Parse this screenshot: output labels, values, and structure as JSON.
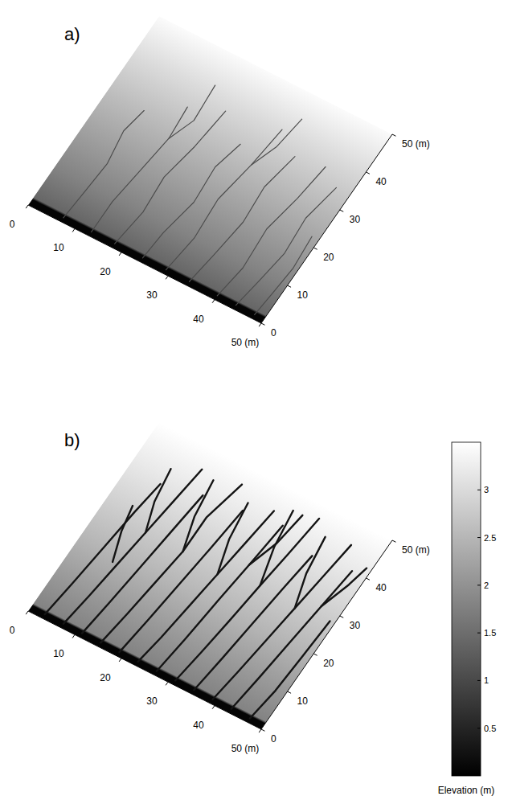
{
  "chart_data": [
    {
      "type": "surface",
      "title": "a)",
      "color": "#4d4d4d",
      "xlim": [
        0,
        50
      ],
      "ylim": [
        0,
        50
      ],
      "xticks": [
        0,
        10,
        20,
        30,
        40,
        {
          "value": 50,
          "label": "50 (m)"
        }
      ],
      "yticks": [
        0,
        10,
        20,
        30,
        40,
        {
          "value": 50,
          "label": "50 (m)"
        }
      ],
      "profile": {
        "y": [
          0,
          1.5,
          2,
          10,
          20,
          30,
          40,
          50
        ],
        "elevation": [
          0.05,
          0.05,
          1.4,
          1.8,
          2.2,
          2.6,
          3.0,
          3.45
        ]
      },
      "channels": [
        {
          "x": [
            7,
            7.5,
            8,
            7,
            8
          ],
          "y": [
            1,
            8,
            16,
            24,
            30
          ]
        },
        {
          "x": [
            13,
            13,
            14,
            15,
            14.5
          ],
          "y": [
            1,
            9,
            18,
            27,
            35
          ]
        },
        {
          "x": [
            18,
            19,
            18.5,
            20,
            21
          ],
          "y": [
            1,
            10,
            19,
            28,
            38
          ]
        },
        {
          "x": [
            24,
            24.5,
            26,
            25.5,
            27
          ],
          "y": [
            1,
            8,
            17,
            26,
            33
          ]
        },
        {
          "x": [
            29,
            30,
            29.5,
            31,
            32
          ],
          "y": [
            1,
            10,
            20,
            30,
            40
          ]
        },
        {
          "x": [
            34,
            35,
            36,
            35.5,
            37
          ],
          "y": [
            1,
            9,
            18,
            27,
            36
          ]
        },
        {
          "x": [
            40,
            41,
            40.5,
            42,
            43
          ],
          "y": [
            1,
            9,
            19,
            28,
            37
          ]
        },
        {
          "x": [
            44,
            45,
            46,
            45.5,
            47
          ],
          "y": [
            1,
            8,
            16,
            25,
            34
          ]
        },
        {
          "x": [
            48,
            48.5,
            49,
            48.5
          ],
          "y": [
            1,
            7,
            14,
            22
          ]
        },
        {
          "x": [
            15,
            17,
            16.5
          ],
          "y": [
            27,
            33,
            42
          ]
        },
        {
          "x": [
            31,
            33,
            34
          ],
          "y": [
            30,
            36,
            44
          ]
        }
      ]
    },
    {
      "type": "surface",
      "title": "b)",
      "color": "#141414",
      "xlim": [
        0,
        50
      ],
      "ylim": [
        0,
        50
      ],
      "xticks": [
        0,
        10,
        20,
        30,
        40,
        {
          "value": 50,
          "label": "50 (m)"
        }
      ],
      "yticks": [
        0,
        10,
        20,
        30,
        40,
        {
          "value": 50,
          "label": "50 (m)"
        }
      ],
      "profile": {
        "y": [
          0,
          1.5,
          2,
          10,
          20,
          30,
          40,
          50
        ],
        "elevation": [
          0.05,
          0.05,
          1.8,
          2.1,
          2.5,
          2.85,
          3.2,
          3.5
        ]
      },
      "channels": [
        {
          "x": [
            3,
            4,
            5,
            6,
            7
          ],
          "y": [
            1,
            10,
            20,
            30,
            38
          ]
        },
        {
          "x": [
            7,
            8,
            9,
            10,
            11,
            12
          ],
          "y": [
            1,
            9,
            18,
            27,
            36,
            45
          ]
        },
        {
          "x": [
            11,
            12,
            13,
            14,
            15
          ],
          "y": [
            1,
            10,
            20,
            30,
            40
          ]
        },
        {
          "x": [
            15,
            16,
            17,
            18,
            18,
            20
          ],
          "y": [
            1,
            9,
            18,
            27,
            36,
            46
          ]
        },
        {
          "x": [
            19,
            20,
            21,
            22,
            23
          ],
          "y": [
            1,
            10,
            20,
            30,
            41
          ]
        },
        {
          "x": [
            23,
            24,
            25,
            26,
            27,
            28
          ],
          "y": [
            1,
            8,
            17,
            26,
            35,
            44
          ]
        },
        {
          "x": [
            27,
            28,
            29,
            30,
            31
          ],
          "y": [
            1,
            10,
            21,
            31,
            42
          ]
        },
        {
          "x": [
            31,
            32,
            33,
            34,
            35,
            36
          ],
          "y": [
            1,
            9,
            18,
            28,
            37,
            47
          ]
        },
        {
          "x": [
            35,
            36,
            37,
            38,
            39
          ],
          "y": [
            1,
            10,
            20,
            30,
            39
          ]
        },
        {
          "x": [
            39,
            40,
            41,
            42,
            43,
            44
          ],
          "y": [
            1,
            9,
            18,
            27,
            36,
            45
          ]
        },
        {
          "x": [
            43,
            44,
            45,
            46,
            47
          ],
          "y": [
            1,
            10,
            20,
            30,
            40
          ]
        },
        {
          "x": [
            47,
            48,
            48.5,
            49
          ],
          "y": [
            1,
            9,
            18,
            28
          ]
        },
        {
          "x": [
            10,
            8,
            7
          ],
          "y": [
            27,
            34,
            42
          ]
        },
        {
          "x": [
            18,
            16,
            15
          ],
          "y": [
            27,
            35,
            44
          ]
        },
        {
          "x": [
            26,
            24,
            23
          ],
          "y": [
            26,
            34,
            43
          ]
        },
        {
          "x": [
            34,
            32,
            31
          ],
          "y": [
            28,
            37,
            46
          ]
        },
        {
          "x": [
            42,
            40,
            39
          ],
          "y": [
            27,
            35,
            44
          ]
        },
        {
          "x": [
            8,
            6,
            5
          ],
          "y": [
            18,
            25,
            31
          ]
        },
        {
          "x": [
            30,
            32,
            33
          ],
          "y": [
            31,
            38,
            46
          ]
        },
        {
          "x": [
            46,
            48,
            49
          ],
          "y": [
            30,
            37,
            42
          ]
        }
      ],
      "colorbar": {
        "label": "Elevation (m)",
        "lim": [
          0,
          3.5
        ],
        "ticks": [
          0.5,
          1,
          1.5,
          2,
          2.5,
          3
        ]
      }
    }
  ]
}
